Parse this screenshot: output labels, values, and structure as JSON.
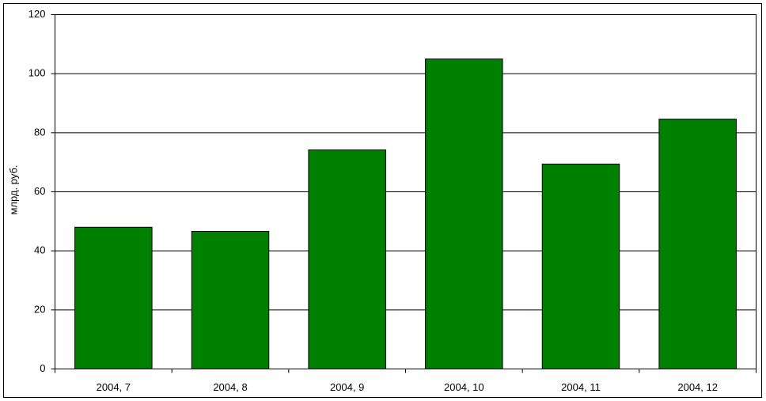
{
  "chart_data": {
    "type": "bar",
    "y_label": "млрд. руб.",
    "categories": [
      "2004, 7",
      "2004, 8",
      "2004, 9",
      "2004, 10",
      "2004, 11",
      "2004, 12"
    ],
    "values": [
      48,
      46.6,
      74.2,
      105,
      69.4,
      84.6
    ],
    "color": "#008000",
    "ylim": [
      0,
      120
    ],
    "yticks": [
      0,
      20,
      40,
      60,
      80,
      100,
      120
    ],
    "grid": true
  }
}
